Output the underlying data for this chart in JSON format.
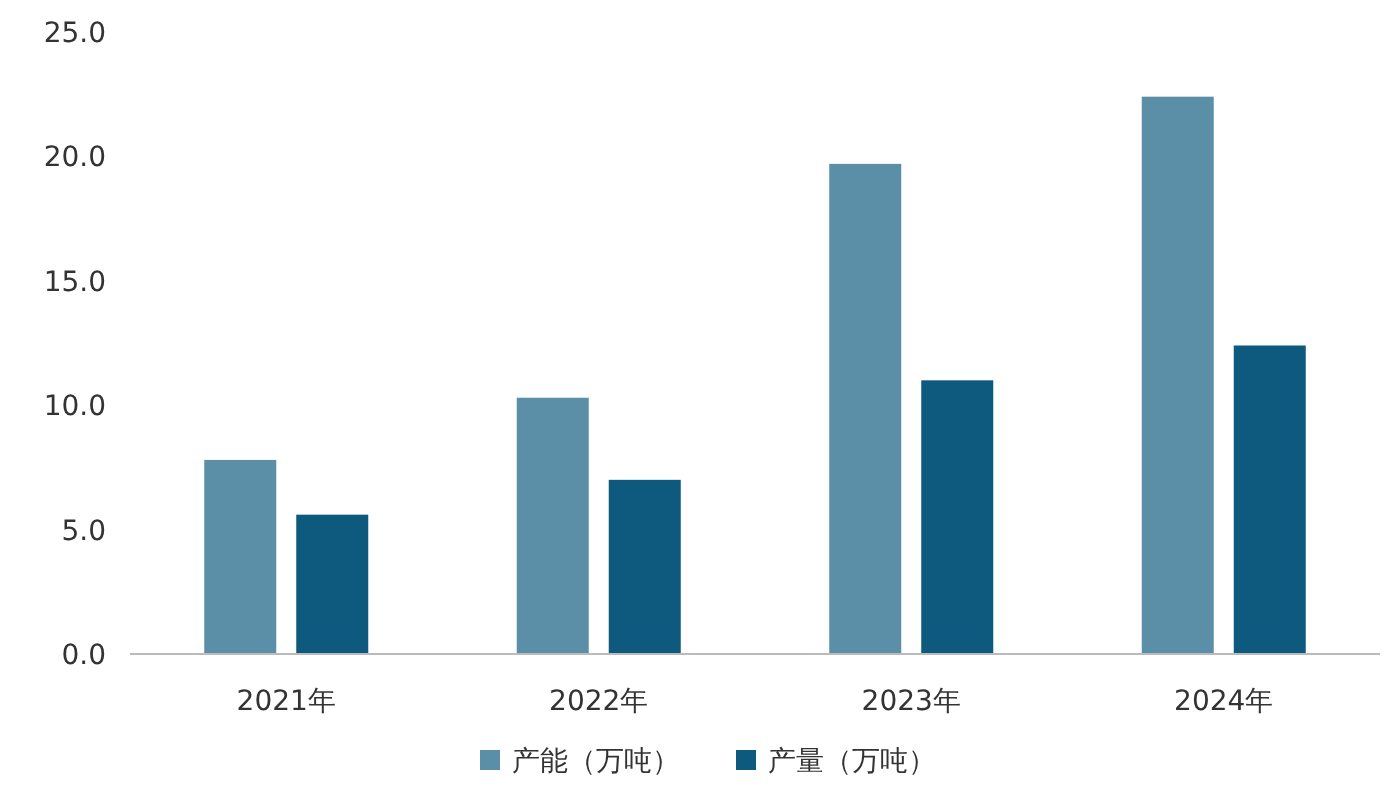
{
  "chart_data": {
    "type": "bar",
    "categories": [
      "2021年",
      "2022年",
      "2023年",
      "2024年"
    ],
    "series": [
      {
        "name": "产能（万吨）",
        "color": "#5b8fa8",
        "values": [
          7.8,
          10.3,
          19.7,
          22.4
        ]
      },
      {
        "name": "产量（万吨）",
        "color": "#0e5a7e",
        "values": [
          5.6,
          7.0,
          11.0,
          12.4
        ]
      }
    ],
    "ylim": [
      0,
      25
    ],
    "yticks": [
      {
        "value": 0,
        "label": "0.0"
      },
      {
        "value": 5,
        "label": "5.0"
      },
      {
        "value": 10,
        "label": "10.0"
      },
      {
        "value": 15,
        "label": "15.0"
      },
      {
        "value": 20,
        "label": "20.0"
      },
      {
        "value": 25,
        "label": "25.0"
      }
    ],
    "legend": "bottom"
  }
}
